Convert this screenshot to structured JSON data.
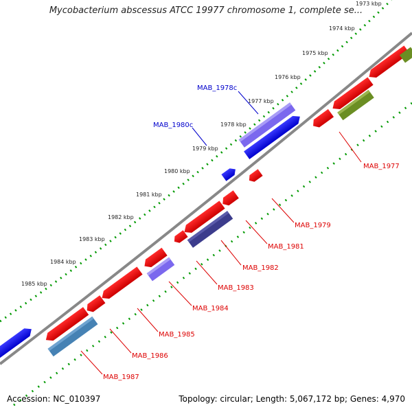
{
  "title": "Mycobacterium abscessus ATCC 19977 chromosome 1, complete se...",
  "accession": "Accession: NC_010397",
  "summary": "Topology: circular; Length: 5,067,172 bp; Genes: 4,970",
  "colors": {
    "forward_gene": "#0000ee",
    "reverse_gene": "#ee0000",
    "forward_label": "#0000cc",
    "reverse_label": "#dd0000",
    "backbone": "#888888",
    "dotted_track": "#009900"
  },
  "scale_labels": [
    "1973 kbp",
    "1974 kbp",
    "1975 kbp",
    "1976 kbp",
    "1977 kbp",
    "1978 kbp",
    "1979 kbp",
    "1980 kbp",
    "1981 kbp",
    "1982 kbp",
    "1983 kbp",
    "1984 kbp",
    "1985 kbp"
  ],
  "forward_gene_labels": [
    "MAB_1978c",
    "MAB_1980c"
  ],
  "reverse_gene_labels": [
    "MAB_1977",
    "MAB_1979",
    "MAB_1981",
    "MAB_1982",
    "MAB_1983",
    "MAB_1984",
    "MAB_1985",
    "MAB_1986",
    "MAB_1987"
  ]
}
